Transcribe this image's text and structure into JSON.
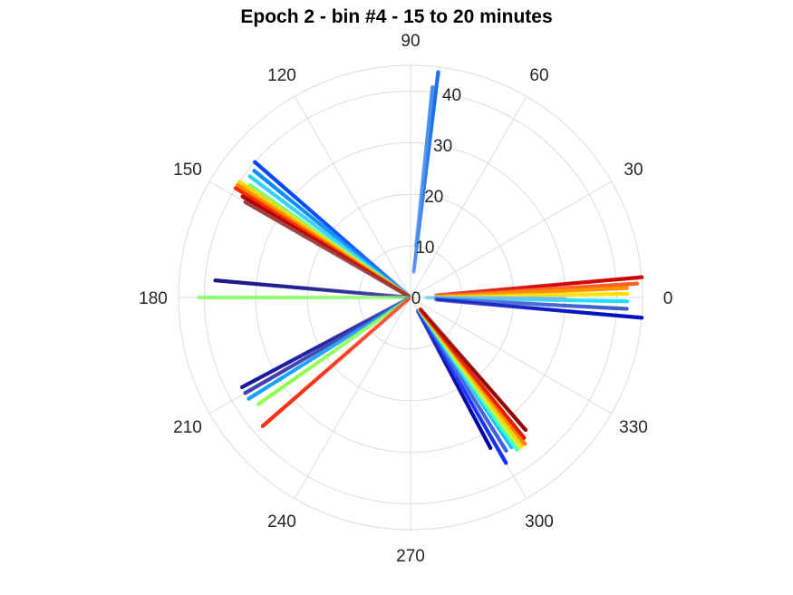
{
  "chart_data": {
    "type": "scatter",
    "polar": true,
    "title": "Epoch 2 - bin #4 - 15 to 20 minutes",
    "r_max": 45,
    "r_ticks": [
      0,
      10,
      20,
      30,
      40
    ],
    "r_tick_angle_deg": 80,
    "theta_ticks": [
      0,
      30,
      60,
      90,
      120,
      150,
      180,
      210,
      240,
      270,
      300,
      330
    ],
    "theta_direction": "counterclockwise",
    "theta_zero": "east",
    "grid": true,
    "colormap": "jet",
    "rays": [
      {
        "angle": 83,
        "r_start": 5,
        "r_end": 44,
        "color": "#1a6ff0"
      },
      {
        "angle": 84,
        "r_start": 10,
        "r_end": 41,
        "color": "#4a90e8"
      },
      {
        "angle": 139,
        "r_start": 0.5,
        "r_end": 40,
        "color": "#0047ff"
      },
      {
        "angle": 141,
        "r_start": 0.5,
        "r_end": 39,
        "color": "#0a8cff"
      },
      {
        "angle": 143,
        "r_start": 0.5,
        "r_end": 39,
        "color": "#33d1ff"
      },
      {
        "angle": 145,
        "r_start": 0.5,
        "r_end": 38,
        "color": "#80ff80"
      },
      {
        "angle": 146,
        "r_start": 0.5,
        "r_end": 40,
        "color": "#ffd400"
      },
      {
        "angle": 147,
        "r_start": 0.5,
        "r_end": 40,
        "color": "#ff8a00"
      },
      {
        "angle": 148,
        "r_start": 0.5,
        "r_end": 40,
        "color": "#ff2a00"
      },
      {
        "angle": 149,
        "r_start": 0.5,
        "r_end": 38,
        "color": "#b30000"
      },
      {
        "angle": 150,
        "r_start": 0.5,
        "r_end": 37,
        "color": "#a04040"
      },
      {
        "angle": 175,
        "r_start": 0.5,
        "r_end": 38,
        "color": "#1a1a8c"
      },
      {
        "angle": 180,
        "r_start": 0.5,
        "r_end": 41,
        "color": "#90ff70"
      },
      {
        "angle": 208,
        "r_start": 0.5,
        "r_end": 37,
        "color": "#1a1aa0"
      },
      {
        "angle": 210,
        "r_start": 0.5,
        "r_end": 37,
        "color": "#4040b0"
      },
      {
        "angle": 212,
        "r_start": 0.5,
        "r_end": 37,
        "color": "#1aa0ff"
      },
      {
        "angle": 215,
        "r_start": 0.5,
        "r_end": 36,
        "color": "#90ff50"
      },
      {
        "angle": 221,
        "r_start": 0.5,
        "r_end": 38,
        "color": "#ff3010"
      },
      {
        "angle": 298,
        "r_start": 3,
        "r_end": 33,
        "color": "#0000a0"
      },
      {
        "angle": 300,
        "r_start": 3,
        "r_end": 37,
        "color": "#1030ff"
      },
      {
        "angle": 302,
        "r_start": 3,
        "r_end": 35,
        "color": "#4060e0"
      },
      {
        "angle": 304,
        "r_start": 3,
        "r_end": 35,
        "color": "#20c0ff"
      },
      {
        "angle": 305,
        "r_start": 3,
        "r_end": 36,
        "color": "#40ffd0"
      },
      {
        "angle": 306,
        "r_start": 3,
        "r_end": 36,
        "color": "#c0ff40"
      },
      {
        "angle": 307,
        "r_start": 3,
        "r_end": 36,
        "color": "#ffd000"
      },
      {
        "angle": 308,
        "r_start": 3,
        "r_end": 36,
        "color": "#ff8000"
      },
      {
        "angle": 309,
        "r_start": 3,
        "r_end": 35,
        "color": "#e02000"
      },
      {
        "angle": 311,
        "r_start": 3,
        "r_end": 34,
        "color": "#900000"
      },
      {
        "angle": 5,
        "r_start": 5,
        "r_end": 45,
        "color": "#d00000"
      },
      {
        "angle": 3.5,
        "r_start": 5,
        "r_end": 44,
        "color": "#ff6020"
      },
      {
        "angle": 2.5,
        "r_start": 5,
        "r_end": 42,
        "color": "#ff9000"
      },
      {
        "angle": 1,
        "r_start": 5,
        "r_end": 42,
        "color": "#ffe000"
      },
      {
        "angle": -1,
        "r_start": 5,
        "r_end": 42,
        "color": "#20e0ff"
      },
      {
        "angle": -0.5,
        "r_start": 3,
        "r_end": 30,
        "color": "#60c0ff"
      },
      {
        "angle": -3,
        "r_start": 5,
        "r_end": 42,
        "color": "#4060d0"
      },
      {
        "angle": -5,
        "r_start": 5,
        "r_end": 45,
        "color": "#0010c0"
      }
    ]
  }
}
